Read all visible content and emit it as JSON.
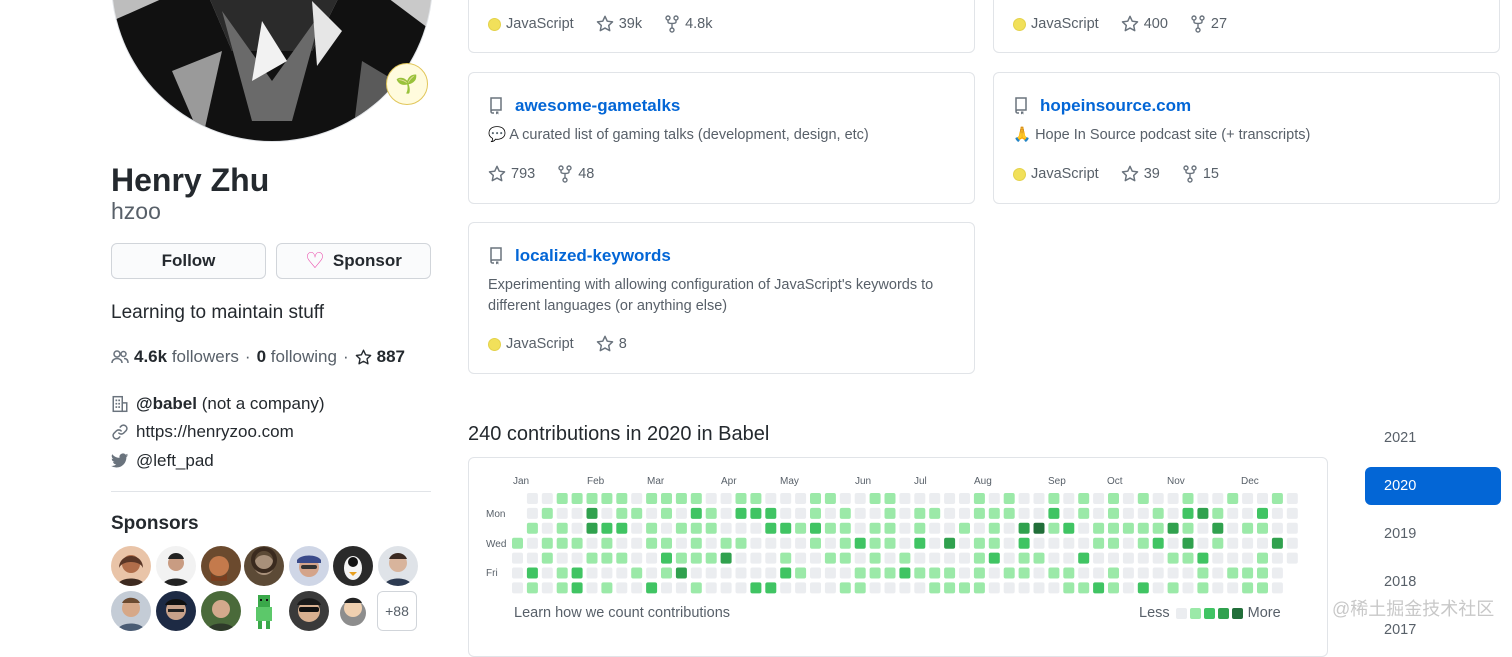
{
  "profile": {
    "name": "Henry Zhu",
    "login": "hzoo",
    "status_emoji": "🌱",
    "follow_label": "Follow",
    "sponsor_label": "Sponsor",
    "bio": "Learning to maintain stuff",
    "followers_count": "4.6k",
    "followers_label": "followers",
    "following_count": "0",
    "following_label": "following",
    "stars_count": "887",
    "company_handle": "@babel",
    "company_note": "(not a company)",
    "website": "https://henryzoo.com",
    "twitter": "@left_pad",
    "sponsors_heading": "Sponsors",
    "sponsors_more": "+88"
  },
  "repos": [
    {
      "name": "",
      "description": "",
      "language": "JavaScript",
      "stars": "39k",
      "forks": "4.8k"
    },
    {
      "name": "",
      "description": "",
      "language": "JavaScript",
      "stars": "400",
      "forks": "27"
    },
    {
      "name": "awesome-gametalks",
      "description": "💬 A curated list of gaming talks (development, design, etc)",
      "language": "",
      "stars": "793",
      "forks": "48"
    },
    {
      "name": "hopeinsource.com",
      "description": "🙏 Hope In Source podcast site (+ transcripts)",
      "language": "JavaScript",
      "stars": "39",
      "forks": "15"
    },
    {
      "name": "localized-keywords",
      "description_line1": "Experimenting with allowing configuration of JavaScript's keywords to",
      "description_line2": "different languages (or anything else)",
      "language": "JavaScript",
      "stars": "8"
    }
  ],
  "contributions": {
    "heading": "240 contributions in 2020 in Babel",
    "months": [
      "Jan",
      "Feb",
      "Mar",
      "Apr",
      "May",
      "Jun",
      "Jul",
      "Aug",
      "Sep",
      "Oct",
      "Nov",
      "Dec"
    ],
    "weekdays": [
      "Mon",
      "Wed",
      "Fri"
    ],
    "learn_link": "Learn how we count contributions",
    "legend_less": "Less",
    "legend_more": "More",
    "level_colors": [
      "#ebedf0",
      "#9be9a8",
      "#40c463",
      "#30a14e",
      "#216e39"
    ]
  },
  "years": [
    "2021",
    "2020",
    "2019",
    "2018",
    "2017"
  ],
  "active_year": "2020",
  "watermark": "@稀土掘金技术社区",
  "colors": {
    "link": "#0366d6",
    "javascript": "#f1e05a",
    "sponsor_heart": "#ea4aaa"
  },
  "icons": [
    "repo-icon",
    "star-icon",
    "fork-icon",
    "people-icon",
    "organization-icon",
    "link-icon",
    "twitter-icon",
    "heart-icon"
  ]
}
